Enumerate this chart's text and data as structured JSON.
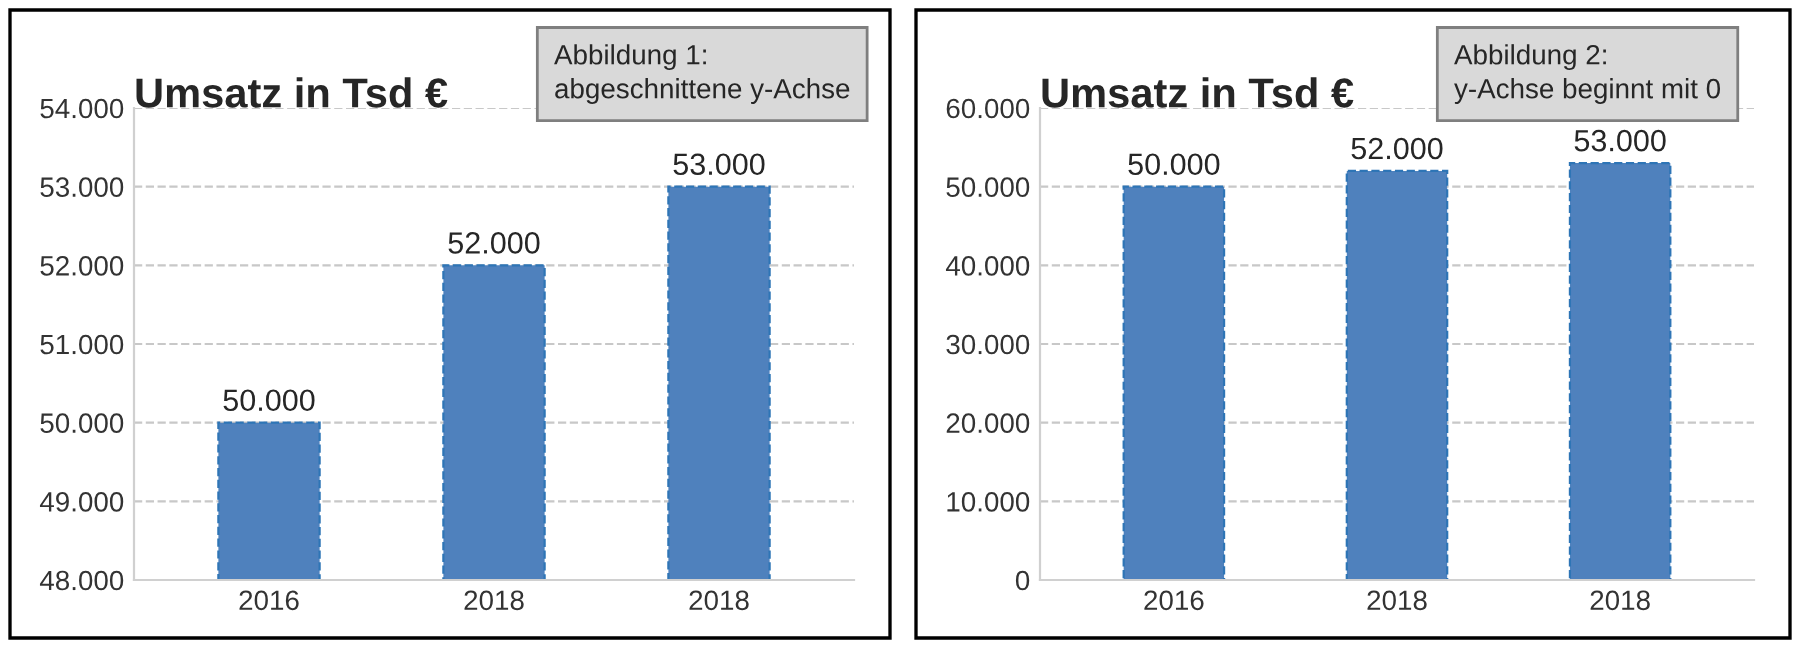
{
  "chart_data": [
    {
      "type": "bar",
      "title": "Umsatz in Tsd €",
      "annotations": [
        "Abbildung 1:\nabgeschnittene y-Achse"
      ],
      "categories": [
        "2016",
        "2018",
        "2018"
      ],
      "values": [
        50000,
        52000,
        53000
      ],
      "color": "#4f81bd",
      "value_labels": [
        "50.000",
        "52.000",
        "53.000"
      ],
      "ylim": [
        48000,
        54000
      ],
      "yticks": [
        {
          "value": 48000,
          "label": "48.000"
        },
        {
          "value": 49000,
          "label": "49.000"
        },
        {
          "value": 50000,
          "label": "50.000"
        },
        {
          "value": 51000,
          "label": "51.000"
        },
        {
          "value": 52000,
          "label": "52.000"
        },
        {
          "value": 53000,
          "label": "53.000"
        },
        {
          "value": 54000,
          "label": "54.000"
        }
      ],
      "grid": "y",
      "legend": false
    },
    {
      "type": "bar",
      "title": "Umsatz in Tsd €",
      "annotations": [
        "Abbildung 2:\ny-Achse beginnt mit 0"
      ],
      "categories": [
        "2016",
        "2018",
        "2018"
      ],
      "values": [
        50000,
        52000,
        53000
      ],
      "color": "#4f81bd",
      "value_labels": [
        "50.000",
        "52.000",
        "53.000"
      ],
      "ylim": [
        0,
        60000
      ],
      "yticks": [
        0,
        {
          "value": 10000,
          "label": "10.000"
        },
        {
          "value": 20000,
          "label": "20.000"
        },
        {
          "value": 30000,
          "label": "30.000"
        },
        {
          "value": 40000,
          "label": "40.000"
        },
        {
          "value": 50000,
          "label": "50.000"
        },
        {
          "value": 60000,
          "label": "60.000"
        }
      ],
      "grid": "y",
      "legend": false
    }
  ]
}
